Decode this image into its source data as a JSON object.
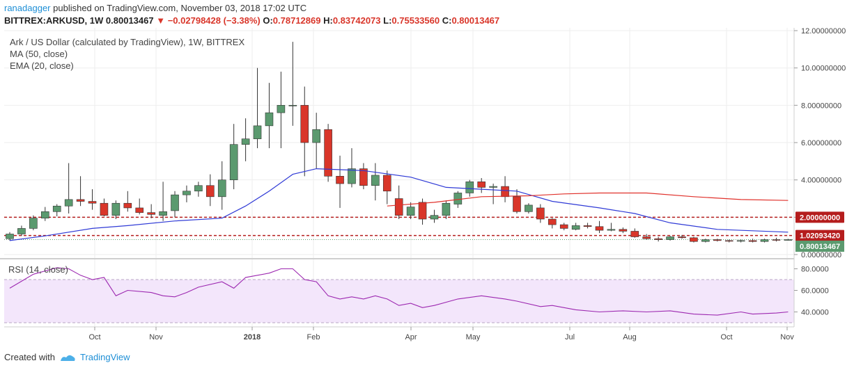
{
  "header": {
    "user": "ranadagger",
    "published_text": "published on TradingView.com, November 03, 2018 17:02 UTC",
    "symbol": "BITTREX:ARKUSD, 1W",
    "last": "0.80013467",
    "change": "−0.02798428 (−3.38%)",
    "open_label": "O:",
    "open": "0.78712869",
    "high_label": "H:",
    "high": "0.83742073",
    "low_label": "L:",
    "low": "0.75533560",
    "close_label": "C:",
    "close": "0.80013467"
  },
  "legend": {
    "title": "Ark / US Dollar (calculated by TradingView), 1W, BITTREX",
    "ma": "MA (50, close)",
    "ema": "EMA (20, close)",
    "rsi": "RSI (14, close)"
  },
  "footer": {
    "created_with": "Created with",
    "brand": "TradingView"
  },
  "colors": {
    "up": "#5b9a6f",
    "down": "#d9362a",
    "ema": "#2f3ad6",
    "ma": "#e0302a",
    "rsi": "#9c27b0",
    "rsi_band": "#f3e6fb",
    "grid": "#eeeeee"
  },
  "chart_data": {
    "type": "candlestick",
    "price_axis": {
      "min": 0,
      "max": 12,
      "ticks": [
        "0.00000000",
        "2.00000000",
        "4.00000000",
        "6.00000000",
        "8.00000000",
        "10.00000000",
        "12.00000000"
      ]
    },
    "rsi_axis": {
      "ticks": [
        "40.0000",
        "60.0000",
        "80.0000"
      ],
      "band": [
        30,
        70
      ]
    },
    "x_labels": [
      "Oct",
      "Nov",
      "2018",
      "Feb",
      "Apr",
      "May",
      "Jul",
      "Aug",
      "Oct",
      "Nov"
    ],
    "horizontal_levels": [
      {
        "value": 2.0,
        "label": "2.00000000"
      },
      {
        "value": 1.0209342,
        "label": "1.02093420"
      }
    ],
    "current_price": {
      "value": 0.80013467,
      "label": "0.80013467"
    },
    "candles": [
      [
        0.85,
        1.2,
        0.75,
        1.1
      ],
      [
        1.1,
        1.55,
        1.0,
        1.4
      ],
      [
        1.4,
        2.1,
        1.3,
        1.95
      ],
      [
        1.95,
        2.55,
        1.8,
        2.3
      ],
      [
        2.3,
        2.7,
        2.05,
        2.6
      ],
      [
        2.6,
        4.9,
        2.2,
        2.95
      ],
      [
        2.95,
        4.2,
        2.6,
        2.85
      ],
      [
        2.85,
        3.5,
        2.4,
        2.75
      ],
      [
        2.75,
        3.0,
        2.05,
        2.1
      ],
      [
        2.1,
        2.9,
        1.9,
        2.75
      ],
      [
        2.75,
        3.4,
        2.3,
        2.5
      ],
      [
        2.5,
        3.0,
        2.15,
        2.25
      ],
      [
        2.25,
        2.7,
        1.95,
        2.15
      ],
      [
        2.1,
        3.9,
        1.8,
        2.3
      ],
      [
        2.35,
        3.4,
        2.0,
        3.2
      ],
      [
        3.2,
        3.7,
        2.8,
        3.4
      ],
      [
        3.4,
        3.9,
        3.1,
        3.7
      ],
      [
        3.7,
        4.3,
        2.6,
        3.1
      ],
      [
        3.1,
        5.0,
        2.4,
        4.0
      ],
      [
        4.0,
        7.0,
        3.5,
        5.9
      ],
      [
        5.9,
        7.3,
        5.0,
        6.2
      ],
      [
        6.2,
        10.0,
        5.7,
        6.9
      ],
      [
        6.9,
        9.2,
        5.7,
        7.6
      ],
      [
        7.6,
        9.8,
        5.7,
        8.0
      ],
      [
        8.0,
        11.4,
        6.9,
        8.0
      ],
      [
        8.0,
        9.0,
        4.2,
        6.0
      ],
      [
        6.0,
        7.6,
        4.6,
        6.7
      ],
      [
        6.7,
        7.0,
        3.9,
        4.2
      ],
      [
        4.2,
        5.3,
        2.5,
        3.8
      ],
      [
        3.8,
        5.7,
        3.6,
        4.6
      ],
      [
        4.6,
        4.9,
        3.5,
        3.7
      ],
      [
        3.7,
        4.9,
        2.9,
        4.25
      ],
      [
        4.25,
        4.5,
        2.7,
        3.4
      ],
      [
        3.0,
        3.7,
        1.9,
        2.1
      ],
      [
        2.1,
        2.8,
        1.9,
        2.55
      ],
      [
        2.8,
        3.0,
        1.6,
        1.9
      ],
      [
        1.9,
        2.4,
        1.7,
        2.1
      ],
      [
        2.1,
        2.9,
        1.9,
        2.75
      ],
      [
        2.7,
        3.4,
        2.5,
        3.3
      ],
      [
        3.3,
        4.0,
        3.1,
        3.9
      ],
      [
        3.9,
        4.1,
        3.3,
        3.6
      ],
      [
        3.6,
        3.8,
        2.7,
        3.65
      ],
      [
        3.65,
        4.2,
        2.8,
        3.1
      ],
      [
        3.1,
        3.5,
        2.2,
        2.3
      ],
      [
        2.3,
        2.75,
        2.2,
        2.65
      ],
      [
        2.5,
        2.7,
        1.7,
        1.9
      ],
      [
        1.9,
        1.95,
        1.4,
        1.6
      ],
      [
        1.6,
        1.7,
        1.3,
        1.4
      ],
      [
        1.35,
        1.7,
        1.3,
        1.55
      ],
      [
        1.55,
        1.7,
        1.4,
        1.5
      ],
      [
        1.5,
        1.8,
        1.15,
        1.3
      ],
      [
        1.3,
        1.7,
        1.25,
        1.35
      ],
      [
        1.35,
        1.45,
        1.15,
        1.25
      ],
      [
        1.25,
        1.4,
        0.9,
        0.95
      ],
      [
        0.95,
        1.1,
        0.8,
        0.85
      ],
      [
        0.85,
        0.95,
        0.7,
        0.8
      ],
      [
        0.8,
        1.0,
        0.75,
        0.95
      ],
      [
        0.95,
        1.05,
        0.85,
        0.9
      ],
      [
        0.9,
        0.95,
        0.65,
        0.7
      ],
      [
        0.7,
        0.85,
        0.65,
        0.8
      ],
      [
        0.8,
        0.85,
        0.7,
        0.75
      ],
      [
        0.75,
        0.8,
        0.65,
        0.72
      ],
      [
        0.72,
        0.8,
        0.65,
        0.75
      ],
      [
        0.75,
        0.85,
        0.65,
        0.7
      ],
      [
        0.7,
        0.85,
        0.65,
        0.8
      ],
      [
        0.8,
        0.9,
        0.7,
        0.78
      ],
      [
        0.78,
        0.84,
        0.75,
        0.8
      ]
    ],
    "ema20": [
      [
        0,
        0.75
      ],
      [
        3,
        1.0
      ],
      [
        7,
        1.4
      ],
      [
        10,
        1.55
      ],
      [
        14,
        1.8
      ],
      [
        18,
        1.95
      ],
      [
        20,
        2.6
      ],
      [
        22,
        3.4
      ],
      [
        24,
        4.3
      ],
      [
        26,
        4.6
      ],
      [
        30,
        4.5
      ],
      [
        34,
        4.15
      ],
      [
        37,
        3.6
      ],
      [
        40,
        3.5
      ],
      [
        43,
        3.4
      ],
      [
        46,
        2.85
      ],
      [
        50,
        2.5
      ],
      [
        53,
        2.2
      ],
      [
        56,
        1.7
      ],
      [
        60,
        1.35
      ],
      [
        66,
        1.2
      ]
    ],
    "ma50": [
      [
        32,
        2.6
      ],
      [
        36,
        2.8
      ],
      [
        40,
        3.1
      ],
      [
        44,
        3.15
      ],
      [
        47,
        3.25
      ],
      [
        50,
        3.3
      ],
      [
        54,
        3.3
      ],
      [
        58,
        3.1
      ],
      [
        62,
        2.95
      ],
      [
        66,
        2.9
      ]
    ],
    "rsi": [
      [
        0,
        62
      ],
      [
        2,
        75
      ],
      [
        4,
        81
      ],
      [
        5,
        80
      ],
      [
        6,
        74
      ],
      [
        7,
        70
      ],
      [
        8,
        72
      ],
      [
        9,
        55
      ],
      [
        10,
        60
      ],
      [
        12,
        58
      ],
      [
        13,
        55
      ],
      [
        14,
        54
      ],
      [
        15,
        58
      ],
      [
        16,
        63
      ],
      [
        18,
        68
      ],
      [
        19,
        62
      ],
      [
        20,
        72
      ],
      [
        22,
        76
      ],
      [
        23,
        80
      ],
      [
        24,
        80
      ],
      [
        25,
        70
      ],
      [
        26,
        68
      ],
      [
        27,
        55
      ],
      [
        28,
        52
      ],
      [
        29,
        54
      ],
      [
        30,
        52
      ],
      [
        31,
        55
      ],
      [
        32,
        52
      ],
      [
        33,
        46
      ],
      [
        34,
        48
      ],
      [
        35,
        44
      ],
      [
        36,
        46
      ],
      [
        38,
        52
      ],
      [
        40,
        55
      ],
      [
        42,
        52
      ],
      [
        43,
        50
      ],
      [
        45,
        45
      ],
      [
        46,
        46
      ],
      [
        48,
        42
      ],
      [
        50,
        40
      ],
      [
        52,
        41
      ],
      [
        54,
        40
      ],
      [
        56,
        41
      ],
      [
        58,
        38
      ],
      [
        60,
        37
      ],
      [
        62,
        40
      ],
      [
        63,
        38
      ],
      [
        65,
        39
      ],
      [
        66,
        40
      ]
    ]
  }
}
